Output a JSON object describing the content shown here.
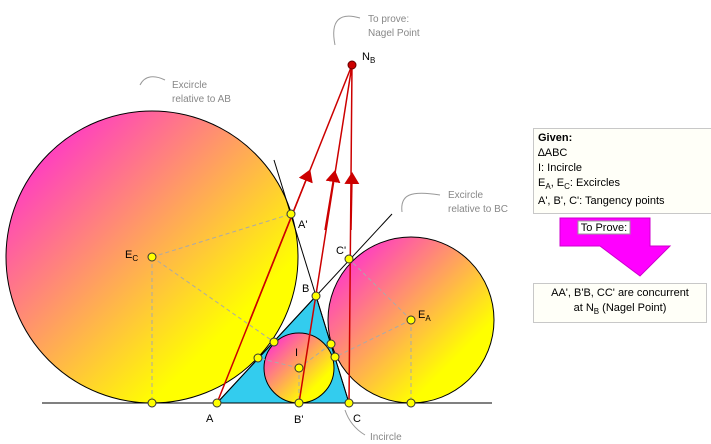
{
  "labels": {
    "to_prove_1": "To prove:",
    "to_prove_2": "Nagel Point",
    "nagel": {
      "main": "N",
      "sub": "B"
    },
    "excircle_ab_1": "Excircle",
    "excircle_ab_2": "relative to AB",
    "excircle_bc_1": "Excircle",
    "excircle_bc_2": "relative to BC",
    "a_prime": "A'",
    "ec": {
      "main": "E",
      "sub": "C"
    },
    "b": "B",
    "c_prime": "C'",
    "ea": {
      "main": "E",
      "sub": "A"
    },
    "i": "I",
    "a": "A",
    "b_prime": "B'",
    "c": "C",
    "incircle": "Incircle"
  },
  "given": {
    "title": "Given:",
    "line1": "∆ABC",
    "line2": "I: Incircle",
    "line3": {
      "e1": "E",
      "s1": "A",
      "mid": ", E",
      "s2": "C",
      "rest": ": Excircles"
    },
    "line4": "A', B', C': Tangency points"
  },
  "to_prove_arrow": "To Prove:",
  "prove": {
    "line1": "AA', B'B, CC' are concurrent",
    "line2_pre": "at N",
    "line2_sub": "B",
    "line2_post": " (Nagel Point)"
  }
}
